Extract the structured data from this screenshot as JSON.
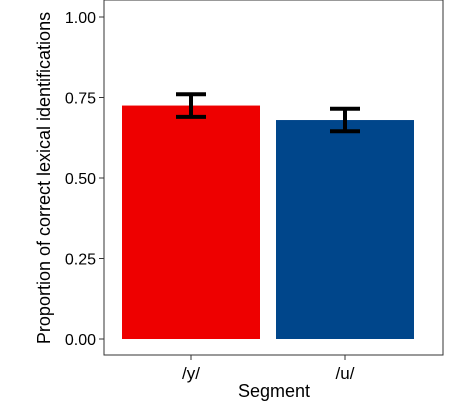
{
  "chart_data": {
    "type": "bar",
    "title": "",
    "xlabel": "Segment",
    "ylabel": "Proportion of correct lexical identifications",
    "categories": [
      "/y/",
      "/u/"
    ],
    "values": [
      0.725,
      0.68
    ],
    "error_low": [
      0.69,
      0.645
    ],
    "error_high": [
      0.76,
      0.715
    ],
    "colors": [
      "#ee0000",
      "#00468b"
    ],
    "ylim": [
      0,
      1
    ],
    "yticks": [
      0,
      0.25,
      0.5,
      0.75,
      1
    ],
    "ytick_labels": [
      "0.00",
      "0.25",
      "0.50",
      "0.75",
      "1.00"
    ],
    "grid": false,
    "legend": "none"
  }
}
